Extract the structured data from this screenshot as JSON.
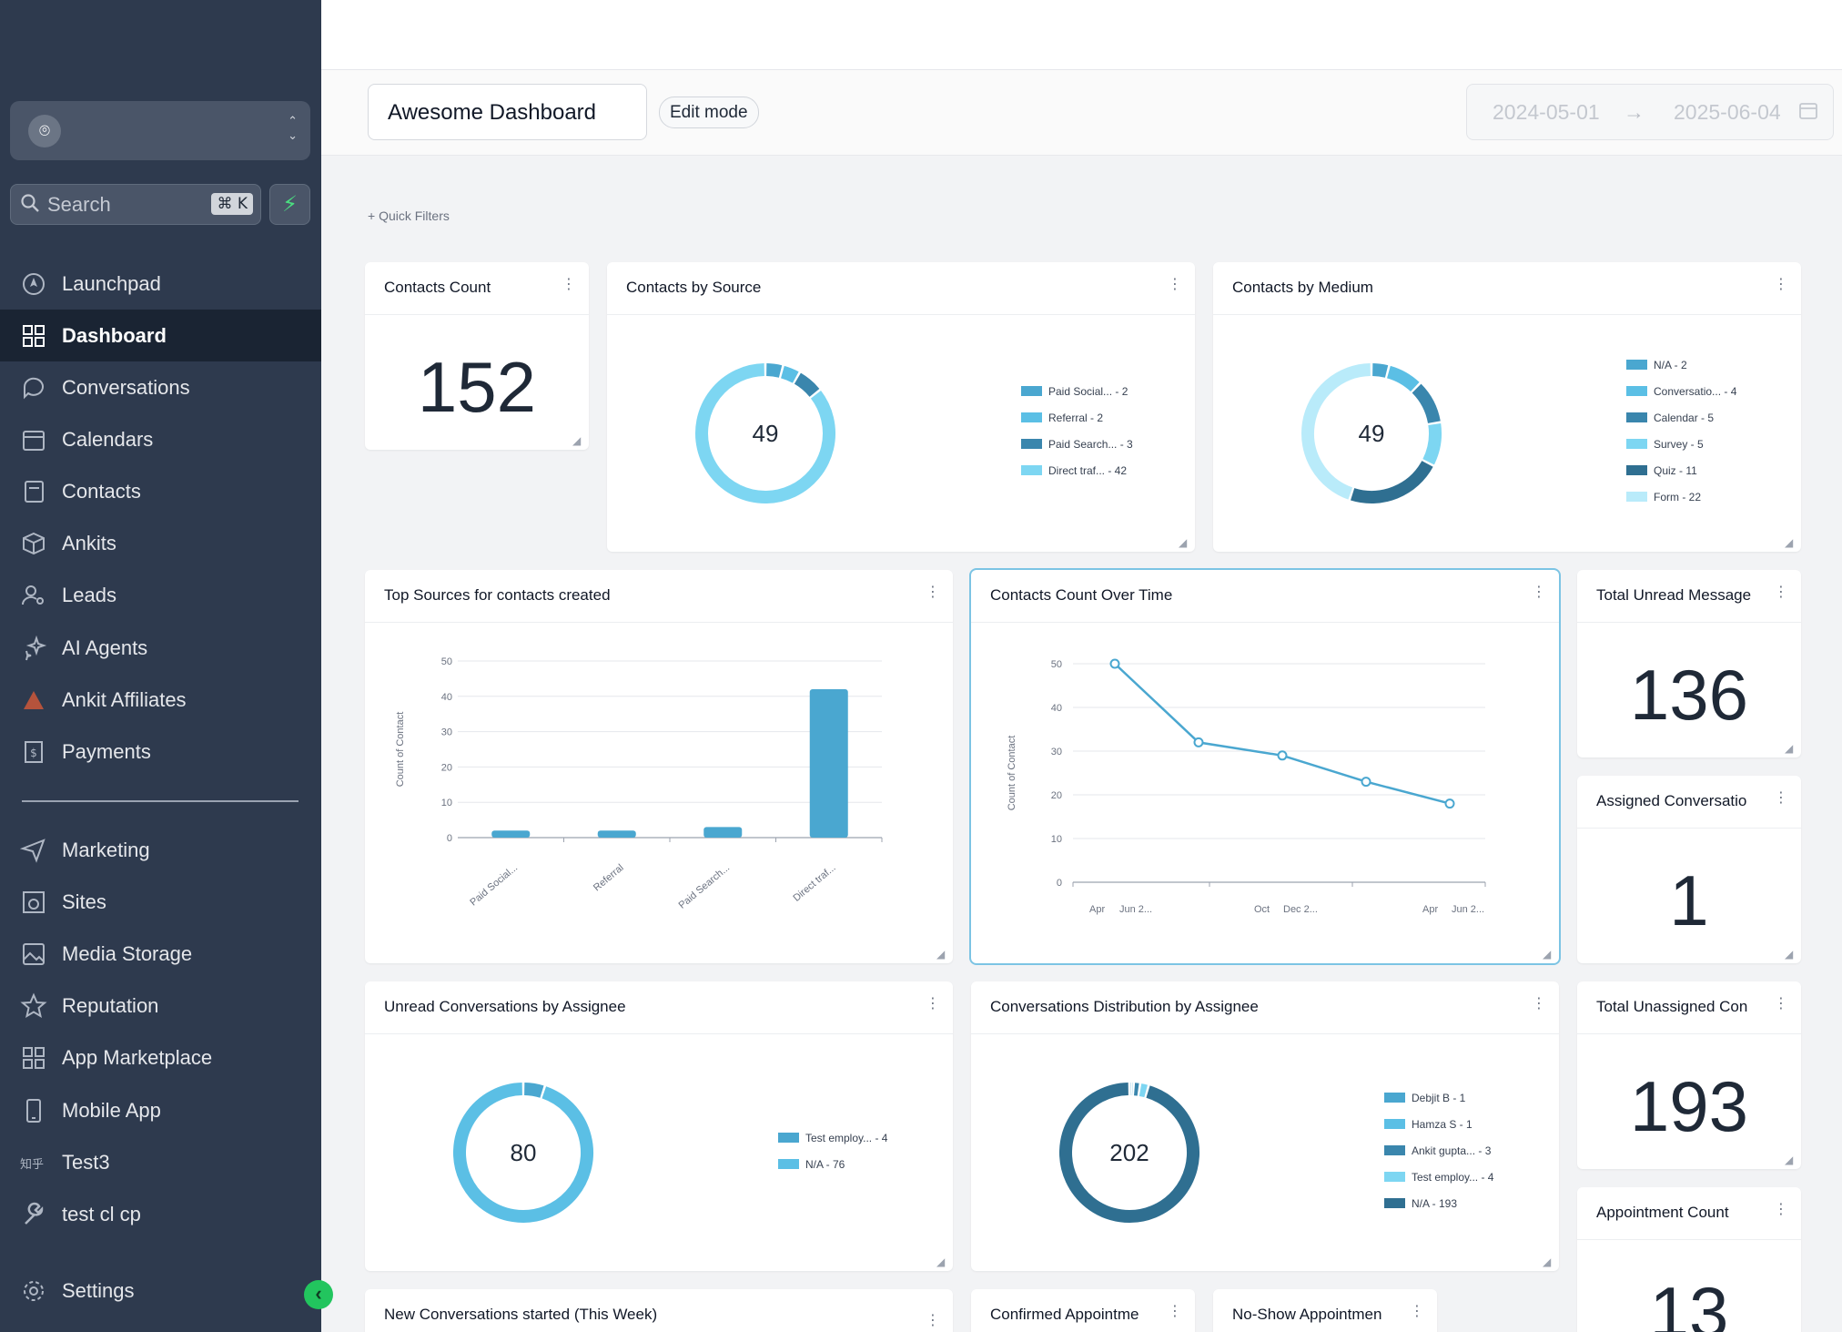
{
  "sidebar": {
    "search": {
      "label": "Search",
      "shortcut": "⌘ K"
    },
    "nav": [
      {
        "label": "Launchpad",
        "icon": "rocket-icon"
      },
      {
        "label": "Dashboard",
        "icon": "grid-icon",
        "active": true
      },
      {
        "label": "Conversations",
        "icon": "chat-icon"
      },
      {
        "label": "Calendars",
        "icon": "calendar-icon"
      },
      {
        "label": "Contacts",
        "icon": "contacts-icon"
      },
      {
        "label": "Ankits",
        "icon": "box-icon"
      },
      {
        "label": "Leads",
        "icon": "user-search-icon"
      },
      {
        "label": "AI Agents",
        "icon": "sparkle-icon"
      },
      {
        "label": "Ankit Affiliates",
        "icon": "triangle-icon"
      },
      {
        "label": "Payments",
        "icon": "receipt-icon"
      },
      {
        "label": "Marketing",
        "icon": "send-icon"
      },
      {
        "label": "Sites",
        "icon": "globe-icon"
      },
      {
        "label": "Media Storage",
        "icon": "image-icon"
      },
      {
        "label": "Reputation",
        "icon": "star-icon"
      },
      {
        "label": "App Marketplace",
        "icon": "apps-icon"
      },
      {
        "label": "Mobile App",
        "icon": "phone-icon"
      },
      {
        "label": "Test3",
        "icon": "text-icon"
      },
      {
        "label": "test cl cp",
        "icon": "wrench-icon"
      },
      {
        "label": "Settings",
        "icon": "gear-icon"
      }
    ],
    "colors": {
      "bg": "#2e3a4e",
      "active_bg": "#1a2433",
      "accent": "#22c55e"
    }
  },
  "header": {
    "dashboard_name": "Awesome Dashboard",
    "edit_mode": "Edit mode",
    "date_start": "2024-05-01",
    "date_end": "2025-06-04"
  },
  "quick_filters": "+ Quick Filters",
  "cards": {
    "contacts_count": {
      "title": "Contacts Count",
      "value": "152"
    },
    "contacts_by_source": {
      "title": "Contacts by Source",
      "total": "49",
      "legend": [
        "Paid Social... - 2",
        "Referral - 2",
        "Paid Search... - 3",
        "Direct traf... - 42"
      ]
    },
    "contacts_by_medium": {
      "title": "Contacts by Medium",
      "total": "49",
      "legend": [
        "N/A - 2",
        "Conversatio... - 4",
        "Calendar - 5",
        "Survey - 5",
        "Quiz - 11",
        "Form - 22"
      ]
    },
    "top_sources": {
      "title": "Top Sources for contacts created"
    },
    "count_over_time": {
      "title": "Contacts Count Over Time"
    },
    "total_unread": {
      "title": "Total Unread Message",
      "value": "136"
    },
    "assigned_conv": {
      "title": "Assigned Conversatio",
      "value": "1"
    },
    "unread_by_assignee": {
      "title": "Unread Conversations by Assignee",
      "total": "80",
      "legend": [
        "Test employ... - 4",
        "N/A - 76"
      ]
    },
    "conv_distribution": {
      "title": "Conversations Distribution by Assignee",
      "total": "202",
      "legend": [
        "Debjit B - 1",
        "Hamza S - 1",
        "Ankit gupta... - 3",
        "Test employ... - 4",
        "N/A - 193"
      ]
    },
    "total_unassigned": {
      "title": "Total Unassigned Con",
      "value": "193"
    },
    "appointment_count": {
      "title": "Appointment Count",
      "value": "13"
    },
    "new_conversations": {
      "title": "New Conversations started (This Week)"
    },
    "confirmed_appointments": {
      "title": "Confirmed Appointme"
    },
    "noshow_appointments": {
      "title": "No-Show Appointmen"
    }
  },
  "chart_data": [
    {
      "type": "pie",
      "title": "Contacts by Source",
      "labels": [
        "Paid Social...",
        "Referral",
        "Paid Search...",
        "Direct traf..."
      ],
      "values": [
        2,
        2,
        3,
        42
      ],
      "colors": [
        "#4aa7d0",
        "#5bbfe5",
        "#3a86ad",
        "#7dd6f2"
      ],
      "legend": "right"
    },
    {
      "type": "pie",
      "title": "Contacts by Medium",
      "labels": [
        "N/A",
        "Conversatio...",
        "Calendar",
        "Survey",
        "Quiz",
        "Form"
      ],
      "values": [
        2,
        4,
        5,
        5,
        11,
        22
      ],
      "colors": [
        "#4aa7d0",
        "#5bbfe5",
        "#3a86ad",
        "#7dd6f2",
        "#2f6f91",
        "#b9ebfa"
      ],
      "legend": "right"
    },
    {
      "type": "bar",
      "title": "Top Sources for contacts created",
      "categories": [
        "Paid Social...",
        "Referral",
        "Paid Search...",
        "Direct traf..."
      ],
      "values": [
        2,
        2,
        3,
        42
      ],
      "ylabel": "Count of Contact",
      "ylim": [
        0,
        50
      ],
      "yticks": [
        0,
        10,
        20,
        30,
        40,
        50
      ],
      "color": "#4aa7d0",
      "grid": true
    },
    {
      "type": "line",
      "title": "Contacts Count Over Time",
      "points": [
        [
          0,
          50
        ],
        [
          1,
          32
        ],
        [
          2,
          29
        ],
        [
          3,
          23
        ],
        [
          4,
          18
        ]
      ],
      "ylabel": "Count of Contact",
      "ylim": [
        0,
        50
      ],
      "yticks": [
        0,
        10,
        20,
        30,
        40,
        50
      ],
      "xtick_labels": [
        "Apr",
        "Jun 2...",
        "Oct",
        "Dec 2...",
        "Apr",
        "Jun 2..."
      ],
      "color": "#4aa7d0",
      "grid": true
    },
    {
      "type": "pie",
      "title": "Unread Conversations by Assignee",
      "labels": [
        "Test employ...",
        "N/A"
      ],
      "values": [
        4,
        76
      ],
      "colors": [
        "#4aa7d0",
        "#5bbfe5"
      ],
      "legend": "right"
    },
    {
      "type": "pie",
      "title": "Conversations Distribution by Assignee",
      "labels": [
        "Debjit B",
        "Hamza S",
        "Ankit gupta...",
        "Test employ...",
        "N/A"
      ],
      "values": [
        1,
        1,
        3,
        4,
        193
      ],
      "colors": [
        "#4aa7d0",
        "#5bbfe5",
        "#3a86ad",
        "#7dd6f2",
        "#2f6f91"
      ],
      "legend": "right"
    }
  ]
}
